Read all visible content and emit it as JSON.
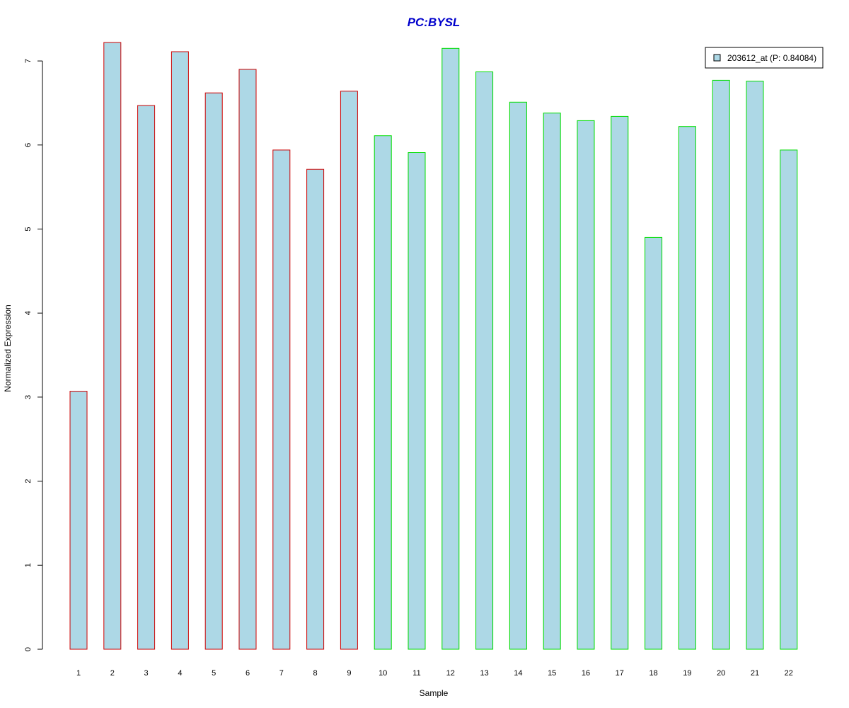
{
  "chart_data": {
    "type": "bar",
    "title": "PC:BYSL",
    "xlabel": "Sample",
    "ylabel": "Normalized Expression",
    "categories": [
      "1",
      "2",
      "3",
      "4",
      "5",
      "6",
      "7",
      "8",
      "9",
      "10",
      "11",
      "12",
      "13",
      "14",
      "15",
      "16",
      "17",
      "18",
      "19",
      "20",
      "21",
      "22"
    ],
    "series": [
      {
        "name": "203612_at (P: 0.84084)",
        "values": [
          3.07,
          7.22,
          6.47,
          7.11,
          6.62,
          6.9,
          5.94,
          5.71,
          6.64,
          6.11,
          5.91,
          7.15,
          6.87,
          6.51,
          6.38,
          6.29,
          6.34,
          4.9,
          6.22,
          6.77,
          6.76,
          5.94
        ]
      }
    ],
    "groups": [
      {
        "color": "#cc0000",
        "samples": [
          1,
          9
        ]
      },
      {
        "color": "#00dd00",
        "samples": [
          10,
          22
        ]
      }
    ],
    "yticks": [
      0,
      1,
      2,
      3,
      4,
      5,
      6,
      7
    ],
    "ylim": [
      0,
      7.3
    ],
    "grid": false,
    "legend_position": "top-right",
    "colors": {
      "bar_fill": "#add8e6",
      "title": "#0000cc"
    }
  }
}
